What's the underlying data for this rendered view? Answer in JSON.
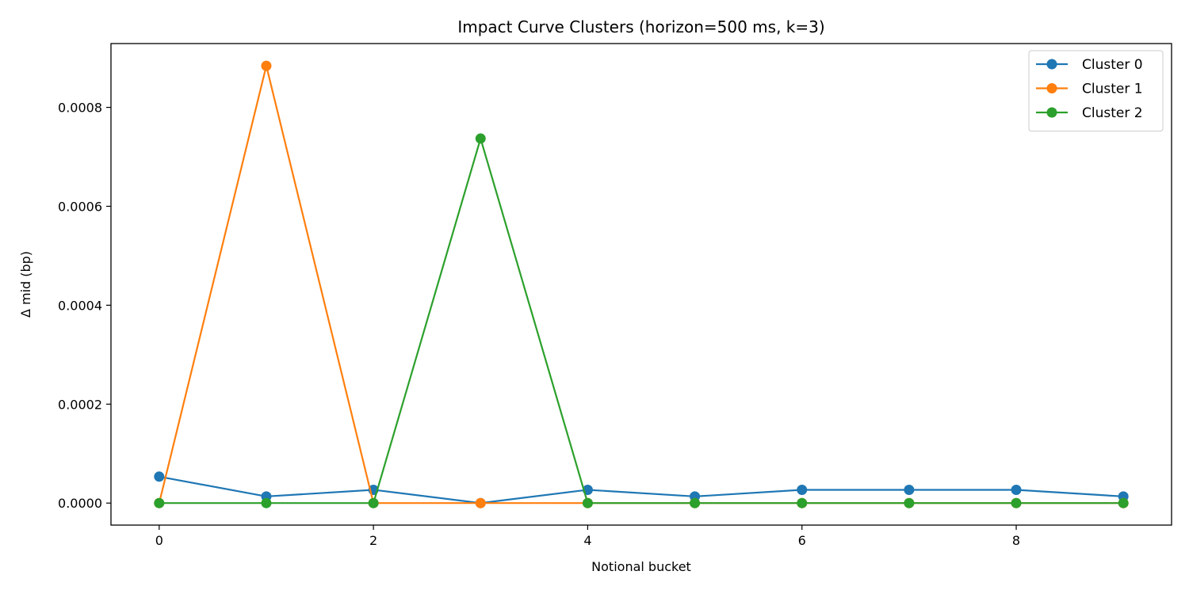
{
  "chart_data": {
    "type": "line",
    "title": "Impact Curve Clusters (horizon=500 ms, k=3)",
    "xlabel": "Notional bucket",
    "ylabel": "Δ mid (bp)",
    "x": [
      0,
      1,
      2,
      3,
      4,
      5,
      6,
      7,
      8,
      9
    ],
    "xlim": [
      -0.45,
      9.45
    ],
    "ylim": [
      -4.45e-05,
      0.000929
    ],
    "xticks": [
      0,
      2,
      4,
      6,
      8
    ],
    "xtick_labels": [
      "0",
      "2",
      "4",
      "6",
      "8"
    ],
    "yticks": [
      0,
      0.0002,
      0.0004,
      0.0006,
      0.0008
    ],
    "ytick_labels": [
      "0.0000",
      "0.0002",
      "0.0004",
      "0.0006",
      "0.0008"
    ],
    "grid": false,
    "legend_position": "top-right",
    "series": [
      {
        "name": "Cluster 0",
        "color": "#1f77b4",
        "values": [
          5.35e-05,
          1.34e-05,
          2.68e-05,
          0.0,
          2.68e-05,
          1.34e-05,
          2.68e-05,
          2.68e-05,
          2.68e-05,
          1.34e-05
        ]
      },
      {
        "name": "Cluster 1",
        "color": "#ff7f0e",
        "values": [
          0.0,
          0.000884,
          0.0,
          0.0,
          0.0,
          0.0,
          0.0,
          0.0,
          0.0,
          0.0
        ]
      },
      {
        "name": "Cluster 2",
        "color": "#2ca02c",
        "values": [
          0.0,
          0.0,
          0.0,
          0.000737,
          0.0,
          0.0,
          0.0,
          0.0,
          0.0,
          0.0
        ]
      }
    ]
  }
}
